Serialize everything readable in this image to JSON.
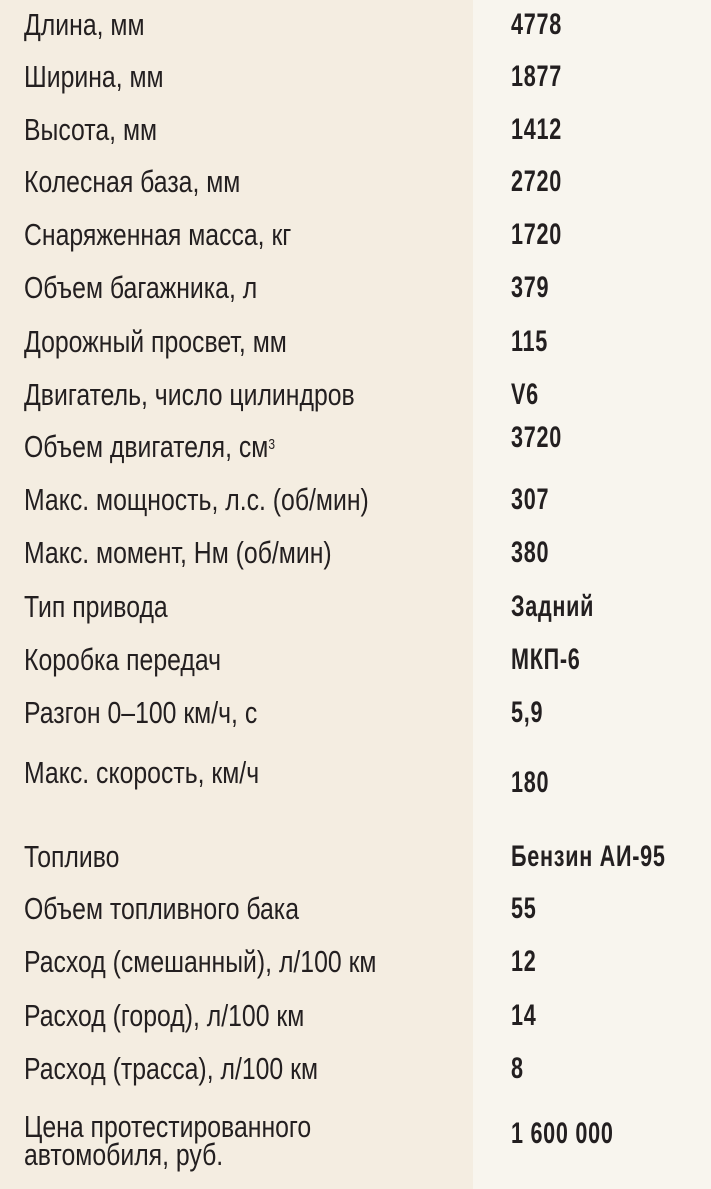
{
  "rows": [
    {
      "label": "Длина, мм",
      "value": "4778"
    },
    {
      "label": "Ширина, мм",
      "value": "1877"
    },
    {
      "label": "Высота, мм",
      "value": "1412"
    },
    {
      "label": "Колесная база, мм",
      "value": "2720"
    },
    {
      "label": "Снаряженная масса, кг",
      "value": "1720"
    },
    {
      "label": "Объем багажника, л",
      "value": "379"
    },
    {
      "label": "Дорожный просвет, мм",
      "value": "115"
    },
    {
      "label": "Двигатель, число цилиндров",
      "value": "V6"
    },
    {
      "label": "Объем двигателя, см",
      "sup": "3",
      "value": "3720"
    },
    {
      "label": "Макс. мощность, л.с. (об/мин)",
      "value": "307"
    },
    {
      "label": "Макс. момент, Нм (об/мин)",
      "value": "380"
    },
    {
      "label": "Тип привода",
      "value": "Задний"
    },
    {
      "label": "Коробка передач",
      "value": "МКП-6"
    },
    {
      "label": "Разгон 0–100 км/ч, с",
      "value": "5,9"
    },
    {
      "label": "Макс. скорость, км/ч",
      "value": "180"
    },
    {
      "label": "Топливо",
      "value": "Бензин АИ-95"
    },
    {
      "label": "Объем топливного бака",
      "value": "55"
    },
    {
      "label": "Расход (смешанный), л/100 км",
      "value": "12"
    },
    {
      "label": "Расход (город), л/100 км",
      "value": "14"
    },
    {
      "label": "Расход (трасса), л/100 км",
      "value": "8"
    },
    {
      "label": "Цена протестированного",
      "label2": "автомобиля, руб.",
      "value": "1 600 000"
    }
  ]
}
